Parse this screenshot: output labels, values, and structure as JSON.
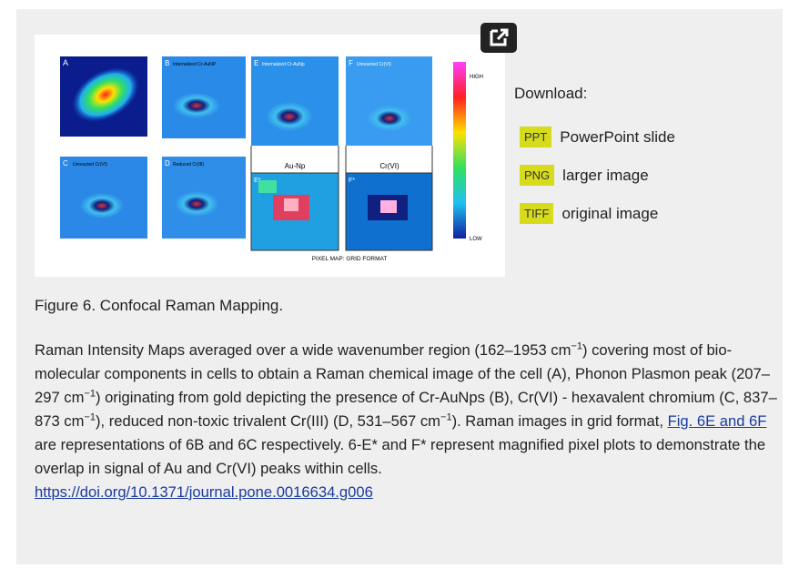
{
  "figure": {
    "image_labels": {
      "panels": [
        "A",
        "B",
        "E",
        "F",
        "C",
        "D",
        "E*",
        "F*"
      ],
      "panel_titles": [
        "Internalized Cr-AuNP",
        "Internalized Cr-AuNp",
        "Unreacted Cr(VI)",
        "Unreacted Cr(VI)",
        "Reduced Cr(III)"
      ],
      "scale_high": "HIGH",
      "scale_low": "LOW",
      "zoom_titles": [
        "Au-Np",
        "Cr(VI)"
      ],
      "footer": "PIXEL MAP: GRID FORMAT"
    },
    "download": {
      "heading": "Download:",
      "items": [
        {
          "badge": "PPT",
          "label": "PowerPoint slide"
        },
        {
          "badge": "PNG",
          "label": "larger image"
        },
        {
          "badge": "TIFF",
          "label": "original image"
        }
      ]
    },
    "caption": {
      "title": "Figure 6. Confocal Raman Mapping.",
      "body": [
        "Raman Intensity Maps averaged over a wide wavenumber region (162–1953 cm",
        "−1",
        ") covering most of bio-molecular components in cells to obtain a Raman chemical image of the cell (A), Phonon Plasmon peak (207–297 cm",
        "−1",
        ") originating from gold depicting the presence of Cr-AuNps (B), Cr(VI) - hexavalent chromium (C, 837–873 cm",
        "−1",
        "), reduced non-toxic trivalent Cr(III) (D, 531–567 cm",
        "−1",
        "). Raman images in grid format, ",
        "Fig. 6E and 6F",
        " are representations of 6B and 6C respectively. 6-E* and F* represent magnified pixel plots to demonstrate the overlap in signal of Au and Cr(VI) peaks within cells.",
        "https://doi.org/10.1371/journal.pone.0016634.g006"
      ]
    }
  }
}
